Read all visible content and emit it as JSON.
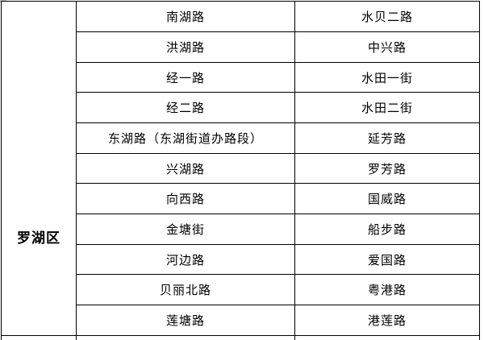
{
  "table": {
    "district": "罗湖区",
    "rows": [
      {
        "left": "南湖路",
        "right": "水贝二路"
      },
      {
        "left": "洪湖路",
        "right": "中兴路"
      },
      {
        "left": "经一路",
        "right": "水田一街"
      },
      {
        "left": "经二路",
        "right": "水田二街"
      },
      {
        "left": "东湖路（东湖街道办路段）",
        "right": "延芳路"
      },
      {
        "left": "兴湖路",
        "right": "罗芳路"
      },
      {
        "left": "向西路",
        "right": "国威路"
      },
      {
        "left": "金塘街",
        "right": "船步路"
      },
      {
        "left": "河边路",
        "right": "爱国路"
      },
      {
        "left": "贝丽北路",
        "right": "粤港路"
      },
      {
        "left": "莲塘路",
        "right": "港莲路"
      }
    ]
  },
  "colors": {
    "row_alt": "#dee9f5",
    "row_base": "#ffffff",
    "border": "#000000",
    "text": "#000000"
  }
}
